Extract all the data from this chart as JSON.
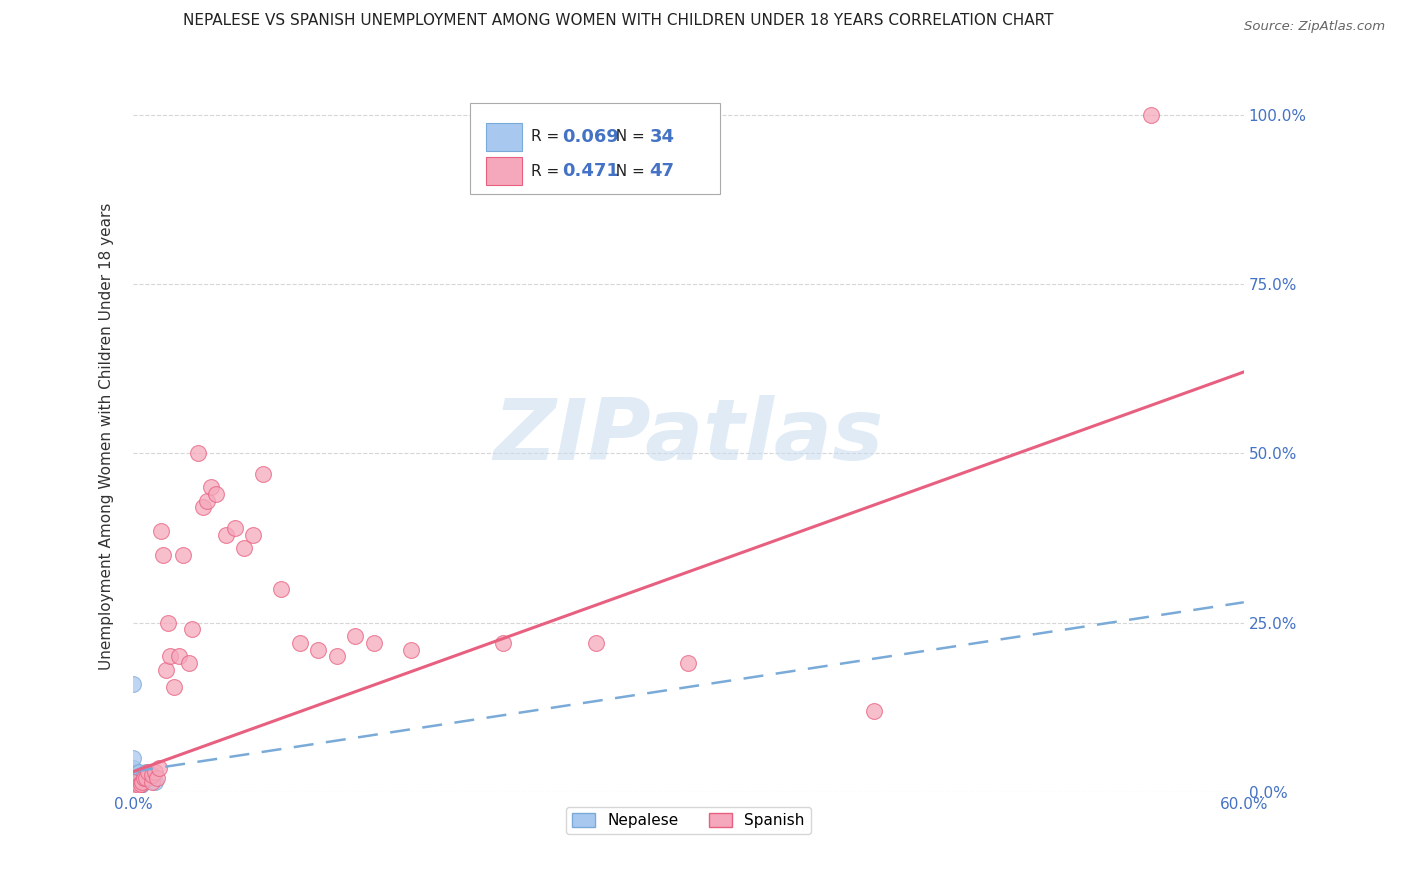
{
  "title": "NEPALESE VS SPANISH UNEMPLOYMENT AMONG WOMEN WITH CHILDREN UNDER 18 YEARS CORRELATION CHART",
  "source": "Source: ZipAtlas.com",
  "ylabel": "Unemployment Among Women with Children Under 18 years",
  "xlim": [
    0.0,
    0.6
  ],
  "ylim": [
    0.0,
    1.05
  ],
  "ytick_values": [
    0.0,
    0.25,
    0.5,
    0.75,
    1.0
  ],
  "ytick_labels": [
    "0.0%",
    "25.0%",
    "50.0%",
    "75.0%",
    "100.0%"
  ],
  "xtick_values": [
    0.0,
    0.1,
    0.2,
    0.3,
    0.4,
    0.5,
    0.6
  ],
  "xtick_labels_show": {
    "0.0": "0.0%",
    "0.6": "60.0%"
  },
  "nepalese_color": "#A8C8F0",
  "nepalese_edge_color": "#7AAAD8",
  "spanish_color": "#F5A8BC",
  "spanish_edge_color": "#E86080",
  "nepalese_line_color": "#7AAAD8",
  "spanish_line_color": "#E86080",
  "nepalese_R": "0.069",
  "nepalese_N": "34",
  "spanish_R": "0.471",
  "spanish_N": "47",
  "background_color": "#FFFFFF",
  "grid_color": "#CCCCCC",
  "watermark_text": "ZIPatlas",
  "watermark_color": "#C8DCF0",
  "tick_color": "#4472C4",
  "nepalese_x": [
    0.0,
    0.0,
    0.0,
    0.0,
    0.0,
    0.0,
    0.0,
    0.0,
    0.0,
    0.0,
    0.0,
    0.0,
    0.0,
    0.0,
    0.0,
    0.0,
    0.0,
    0.0,
    0.0,
    0.0,
    0.003,
    0.003,
    0.003,
    0.004,
    0.004,
    0.004,
    0.005,
    0.006,
    0.007,
    0.007,
    0.008,
    0.009,
    0.01,
    0.012
  ],
  "nepalese_y": [
    0.0,
    0.0,
    0.0,
    0.0,
    0.0,
    0.0,
    0.0,
    0.003,
    0.005,
    0.008,
    0.01,
    0.012,
    0.015,
    0.018,
    0.02,
    0.025,
    0.03,
    0.035,
    0.05,
    0.16,
    0.015,
    0.02,
    0.03,
    0.01,
    0.015,
    0.025,
    0.02,
    0.025,
    0.02,
    0.03,
    0.025,
    0.02,
    0.025,
    0.015
  ],
  "spanish_x": [
    0.0,
    0.0,
    0.0,
    0.002,
    0.003,
    0.004,
    0.005,
    0.006,
    0.007,
    0.008,
    0.01,
    0.01,
    0.012,
    0.013,
    0.014,
    0.015,
    0.016,
    0.018,
    0.019,
    0.02,
    0.022,
    0.025,
    0.027,
    0.03,
    0.032,
    0.035,
    0.038,
    0.04,
    0.042,
    0.045,
    0.05,
    0.055,
    0.06,
    0.065,
    0.07,
    0.08,
    0.09,
    0.1,
    0.11,
    0.12,
    0.13,
    0.15,
    0.2,
    0.25,
    0.3,
    0.4,
    0.55
  ],
  "spanish_y": [
    0.005,
    0.01,
    0.015,
    0.008,
    0.01,
    0.012,
    0.015,
    0.02,
    0.02,
    0.03,
    0.015,
    0.025,
    0.03,
    0.02,
    0.035,
    0.385,
    0.35,
    0.18,
    0.25,
    0.2,
    0.155,
    0.2,
    0.35,
    0.19,
    0.24,
    0.5,
    0.42,
    0.43,
    0.45,
    0.44,
    0.38,
    0.39,
    0.36,
    0.38,
    0.47,
    0.3,
    0.22,
    0.21,
    0.2,
    0.23,
    0.22,
    0.21,
    0.22,
    0.22,
    0.19,
    0.12,
    1.0
  ],
  "nep_line_x0": 0.0,
  "nep_line_x1": 0.6,
  "nep_line_y0": 0.03,
  "nep_line_y1": 0.28,
  "spa_line_x0": 0.0,
  "spa_line_x1": 0.6,
  "spa_line_y0": 0.03,
  "spa_line_y1": 0.62
}
